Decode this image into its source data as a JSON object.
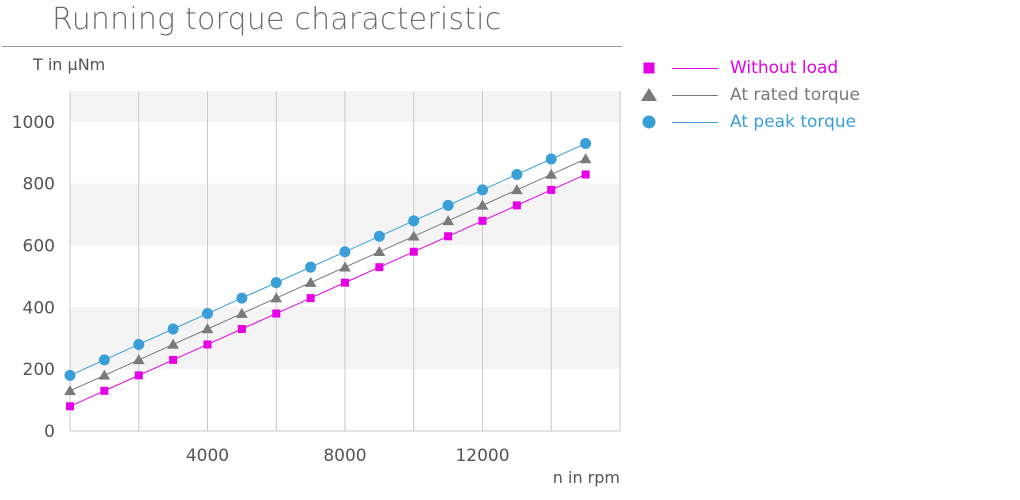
{
  "chart_data": {
    "type": "line",
    "title": "Running torque characteristic",
    "ylabel": "T in µNm",
    "xlabel": "n in rpm",
    "xlim": [
      0,
      16000
    ],
    "ylim": [
      0,
      1100
    ],
    "x_ticks": [
      4000,
      8000,
      12000
    ],
    "y_ticks": [
      0,
      200,
      400,
      600,
      800,
      1000
    ],
    "grid": "vertical lines every 2000 rpm, alternating horizontal bands every 200 µNm",
    "legend_position": "top-right, outside plot",
    "x": [
      0,
      1000,
      2000,
      3000,
      4000,
      5000,
      6000,
      7000,
      8000,
      9000,
      10000,
      11000,
      12000,
      13000,
      14000,
      15000
    ],
    "series": [
      {
        "name": "Without load",
        "marker": "square",
        "color": "#e600e6",
        "values": [
          80,
          130,
          180,
          230,
          280,
          330,
          380,
          430,
          480,
          530,
          580,
          630,
          680,
          730,
          780,
          830
        ]
      },
      {
        "name": "At rated torque",
        "marker": "triangle",
        "color": "#7a7a7a",
        "values": [
          130,
          180,
          230,
          280,
          330,
          380,
          430,
          480,
          530,
          580,
          630,
          680,
          730,
          780,
          830,
          880
        ]
      },
      {
        "name": "At peak torque",
        "marker": "circle",
        "color": "#3a9fd6",
        "values": [
          180,
          230,
          280,
          330,
          380,
          430,
          480,
          530,
          580,
          630,
          680,
          730,
          780,
          830,
          880,
          930
        ]
      }
    ]
  }
}
